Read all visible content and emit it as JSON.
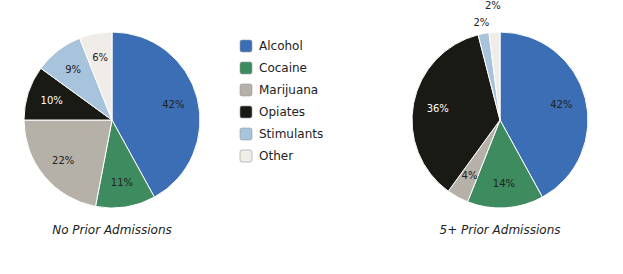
{
  "chart_data": {
    "type": "pie",
    "categories": [
      "Alcohol",
      "Cocaine",
      "Marijuana",
      "Opiates",
      "Stimulants",
      "Other"
    ],
    "colors": [
      "#3B6EB5",
      "#3D8B5E",
      "#B5B0A8",
      "#1A1A14",
      "#A8C4DC",
      "#F0EDE8"
    ],
    "series": [
      {
        "name": "No Prior Admissions",
        "values": [
          42,
          11,
          22,
          10,
          9,
          6
        ],
        "value_labels": [
          "42%",
          "11%",
          "22%",
          "10%",
          "9%",
          "6%"
        ]
      },
      {
        "name": "5+ Prior Admissions",
        "values": [
          42,
          14,
          4,
          36,
          2,
          2
        ],
        "value_labels": [
          "42%",
          "14%",
          "4%",
          "36%",
          "2%",
          "2%"
        ]
      }
    ],
    "data_labels": true,
    "legend": "center"
  }
}
